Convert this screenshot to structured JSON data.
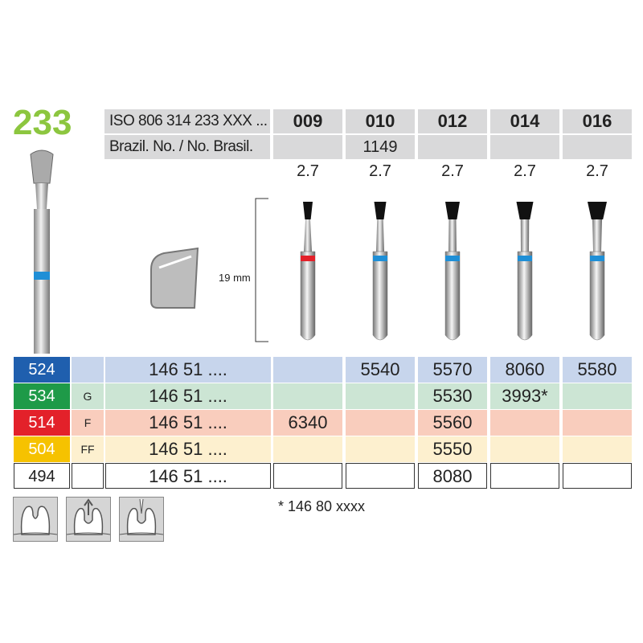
{
  "product": {
    "number": "233"
  },
  "header": {
    "iso_label": "ISO 806 314 233 XXX ...",
    "brazil_label": "Brazil. No. / No. Brasil.",
    "sizes": [
      "009",
      "010",
      "012",
      "014",
      "016"
    ],
    "brazil_numbers": [
      "",
      "1149",
      "",
      "",
      ""
    ],
    "lengths": [
      "2.7",
      "2.7",
      "2.7",
      "2.7",
      "2.7"
    ]
  },
  "dimension": {
    "length_label": "19 mm"
  },
  "colors": {
    "accent": "#8cc63f",
    "blue": "#1f5fae",
    "green": "#1e9a48",
    "red": "#e3212a",
    "yellow": "#f6c200"
  },
  "rows": [
    {
      "code": "524",
      "grit": "",
      "ref": "146 51 ....",
      "values": [
        "",
        "5540",
        "5570",
        "8060",
        "5580"
      ],
      "color": "#1f5fae",
      "bg": "#c7d5ec"
    },
    {
      "code": "534",
      "grit": "G",
      "ref": "146 51 ....",
      "values": [
        "",
        "",
        "5530",
        "3993*",
        ""
      ],
      "color": "#1e9a48",
      "bg": "#cce5d4"
    },
    {
      "code": "514",
      "grit": "F",
      "ref": "146 51 ....",
      "values": [
        "6340",
        "",
        "5560",
        "",
        ""
      ],
      "color": "#e3212a",
      "bg": "#f9cdbd"
    },
    {
      "code": "504",
      "grit": "FF",
      "ref": "146 51 ....",
      "values": [
        "",
        "",
        "5550",
        "",
        ""
      ],
      "color": "#f6c200",
      "bg": "#fdf0cf"
    },
    {
      "code": "494",
      "grit": "",
      "ref": "146 51 ....",
      "values": [
        "",
        "",
        "8080",
        "",
        ""
      ],
      "color": "#ffffff",
      "bg": "#ffffff"
    }
  ],
  "footnote": "*  146 80 xxxx",
  "band_colors": [
    "#e3212a",
    "#1f8fd6",
    "#1f8fd6",
    "#1f8fd6",
    "#1f8fd6"
  ]
}
